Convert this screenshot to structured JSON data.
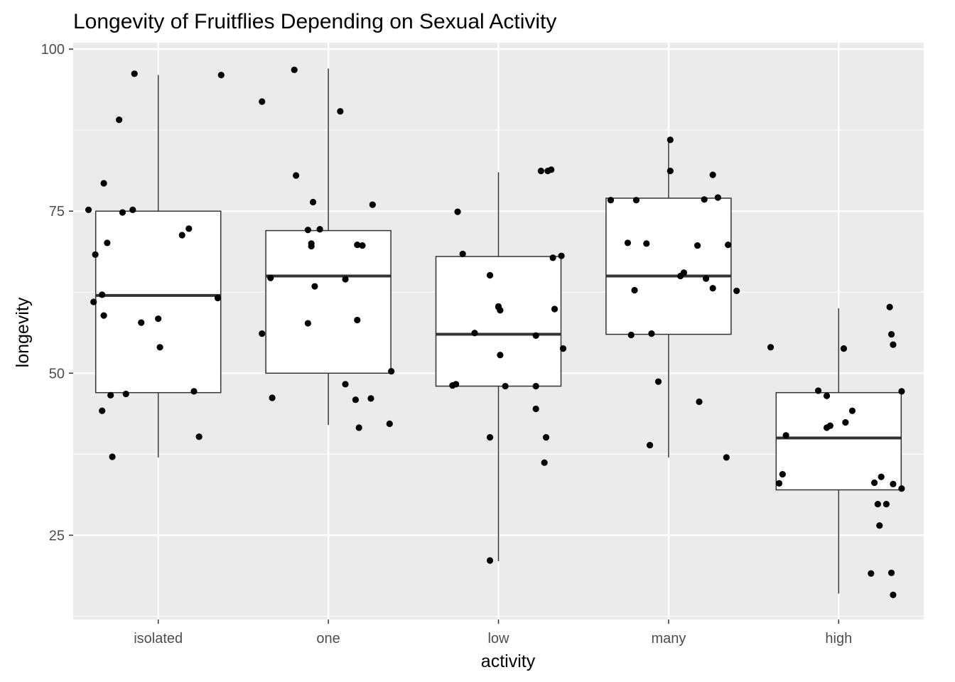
{
  "chart_data": {
    "type": "boxplot",
    "title": "Longevity of Fruitflies Depending on Sexual Activity",
    "xlabel": "activity",
    "ylabel": "longevity",
    "ylim": [
      12,
      101
    ],
    "yticks": [
      25,
      50,
      75,
      100
    ],
    "grid": true,
    "background": "#ebebeb",
    "categories": [
      "isolated",
      "one",
      "low",
      "many",
      "high"
    ],
    "boxes": [
      {
        "q1": 47,
        "median": 62,
        "q3": 75,
        "whisker_low": 37,
        "whisker_high": 96
      },
      {
        "q1": 50,
        "median": 65,
        "q3": 72,
        "whisker_low": 42,
        "whisker_high": 97
      },
      {
        "q1": 48,
        "median": 56,
        "q3": 68,
        "whisker_low": 21,
        "whisker_high": 81
      },
      {
        "q1": 56,
        "median": 65,
        "q3": 77,
        "whisker_low": 37,
        "whisker_high": 86
      },
      {
        "q1": 32,
        "median": 40,
        "q3": 47,
        "whisker_low": 16,
        "whisker_high": 60
      }
    ],
    "points": [
      [
        [
          -0.41,
          75.2
        ],
        [
          -0.38,
          61
        ],
        [
          -0.37,
          68.3
        ],
        [
          -0.33,
          44.2
        ],
        [
          -0.33,
          62.1
        ],
        [
          -0.32,
          58.9
        ],
        [
          -0.32,
          79.3
        ],
        [
          -0.3,
          70.1
        ],
        [
          -0.28,
          46.6
        ],
        [
          -0.27,
          37.1
        ],
        [
          -0.23,
          89.1
        ],
        [
          -0.21,
          74.8
        ],
        [
          -0.19,
          46.8
        ],
        [
          -0.15,
          75.2
        ],
        [
          -0.14,
          96.2
        ],
        [
          -0.1,
          57.8
        ],
        [
          0,
          58.4
        ],
        [
          0.01,
          54
        ],
        [
          0.14,
          71.3
        ],
        [
          0.18,
          72.3
        ],
        [
          0.21,
          47.2
        ],
        [
          0.24,
          40.2
        ],
        [
          0.35,
          61.6
        ],
        [
          0.37,
          96
        ]
      ],
      [
        [
          -0.39,
          56.1
        ],
        [
          -0.39,
          91.9
        ],
        [
          -0.34,
          64.7
        ],
        [
          -0.33,
          46.2
        ],
        [
          -0.2,
          96.8
        ],
        [
          -0.19,
          80.5
        ],
        [
          -0.12,
          57.7
        ],
        [
          -0.12,
          72.1
        ],
        [
          -0.1,
          69.6
        ],
        [
          -0.1,
          70
        ],
        [
          -0.09,
          76.4
        ],
        [
          -0.08,
          63.4
        ],
        [
          -0.05,
          72.2
        ],
        [
          0.07,
          90.4
        ],
        [
          0.1,
          48.3
        ],
        [
          0.1,
          64.5
        ],
        [
          0.16,
          45.9
        ],
        [
          0.17,
          69.8
        ],
        [
          0.17,
          58.2
        ],
        [
          0.18,
          41.6
        ],
        [
          0.2,
          69.7
        ],
        [
          0.25,
          46.1
        ],
        [
          0.26,
          76
        ],
        [
          0.36,
          42.2
        ],
        [
          0.37,
          50.3
        ]
      ],
      [
        [
          -0.27,
          48.1
        ],
        [
          -0.25,
          48.3
        ],
        [
          -0.24,
          74.9
        ],
        [
          -0.21,
          68.4
        ],
        [
          -0.14,
          56.2
        ],
        [
          -0.05,
          21.1
        ],
        [
          -0.05,
          65.1
        ],
        [
          -0.05,
          40.1
        ],
        [
          0,
          60.2
        ],
        [
          0,
          60.3
        ],
        [
          0.01,
          59.7
        ],
        [
          0.01,
          52.8
        ],
        [
          0.04,
          48
        ],
        [
          0.22,
          48
        ],
        [
          0.22,
          55.8
        ],
        [
          0.22,
          44.5
        ],
        [
          0.25,
          81.2
        ],
        [
          0.27,
          36.2
        ],
        [
          0.28,
          40.1
        ],
        [
          0.29,
          81.2
        ],
        [
          0.31,
          81.4
        ],
        [
          0.32,
          67.8
        ],
        [
          0.33,
          59.9
        ],
        [
          0.37,
          68.1
        ],
        [
          0.38,
          53.8
        ]
      ],
      [
        [
          -0.34,
          76.7
        ],
        [
          -0.24,
          70.1
        ],
        [
          -0.22,
          55.9
        ],
        [
          -0.2,
          62.8
        ],
        [
          -0.19,
          76.7
        ],
        [
          -0.13,
          70
        ],
        [
          -0.1,
          56.1
        ],
        [
          -0.11,
          38.9
        ],
        [
          -0.06,
          48.7
        ],
        [
          0.01,
          81.2
        ],
        [
          0.01,
          86
        ],
        [
          0.07,
          65
        ],
        [
          0.09,
          65.5
        ],
        [
          0.17,
          69.7
        ],
        [
          0.18,
          45.6
        ],
        [
          0.21,
          76.8
        ],
        [
          0.22,
          64.6
        ],
        [
          0.26,
          63.1
        ],
        [
          0.26,
          80.6
        ],
        [
          0.29,
          77.1
        ],
        [
          0.34,
          37
        ],
        [
          0.35,
          69.8
        ],
        [
          0.4,
          62.7
        ]
      ],
      [
        [
          -0.4,
          54
        ],
        [
          -0.35,
          33
        ],
        [
          -0.33,
          34.4
        ],
        [
          -0.31,
          40.4
        ],
        [
          -0.12,
          47.3
        ],
        [
          -0.07,
          41.6
        ],
        [
          -0.05,
          41.9
        ],
        [
          -0.07,
          46.5
        ],
        [
          0.03,
          53.8
        ],
        [
          0.04,
          42.4
        ],
        [
          0.08,
          44.2
        ],
        [
          0.21,
          33.1
        ],
        [
          0.19,
          19.1
        ],
        [
          0.23,
          29.8
        ],
        [
          0.24,
          26.5
        ],
        [
          0.25,
          34
        ],
        [
          0.28,
          29.8
        ],
        [
          0.3,
          60.2
        ],
        [
          0.31,
          56
        ],
        [
          0.31,
          19.2
        ],
        [
          0.32,
          54.4
        ],
        [
          0.32,
          32.9
        ],
        [
          0.32,
          15.8
        ],
        [
          0.37,
          32.2
        ],
        [
          0.37,
          47.2
        ]
      ]
    ]
  }
}
